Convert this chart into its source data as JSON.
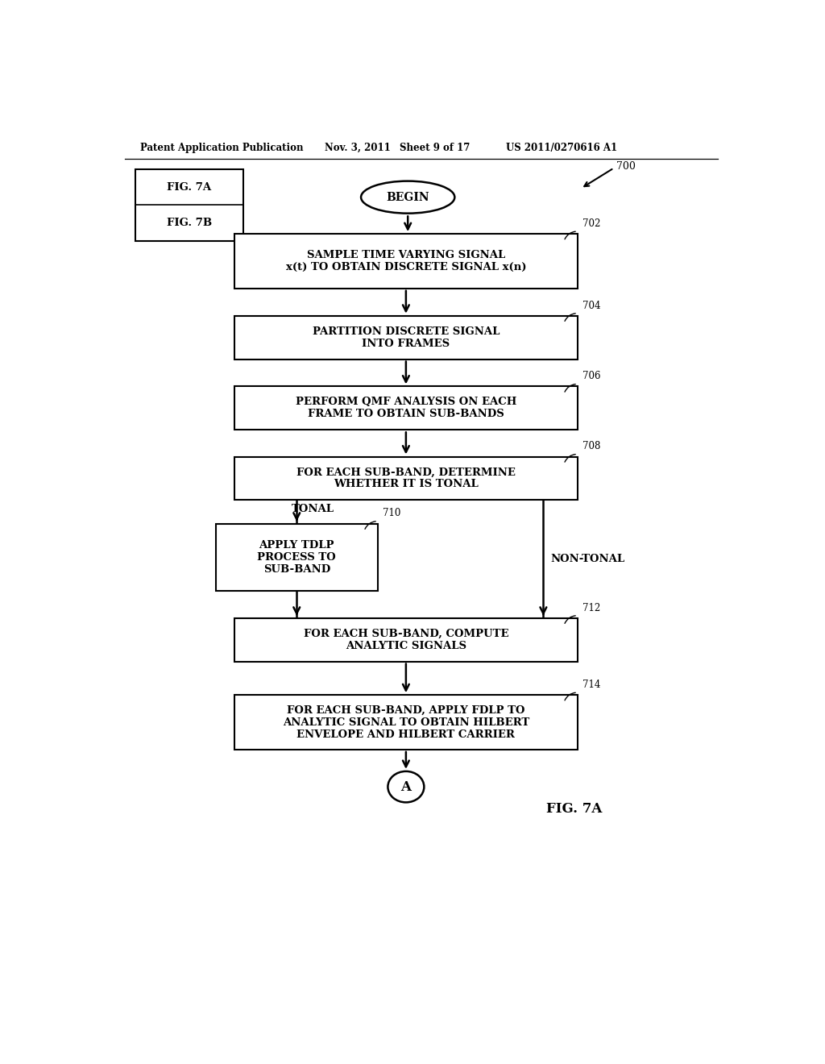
{
  "bg_color": "#ffffff",
  "header_text": "Patent Application Publication",
  "header_date": "Nov. 3, 2011",
  "header_sheet": "Sheet 9 of 17",
  "header_patent": "US 2011/0270616 A1",
  "fig_label_bottom": "FIG. 7A",
  "fig_num": "700",
  "fig_legend_items": [
    "FIG. 7A",
    "FIG. 7B"
  ],
  "begin_text": "BEGIN",
  "connector_label": "A",
  "tonal_label": "TONAL",
  "non_tonal_label": "NON-TONAL",
  "step_texts": {
    "702": "SAMPLE TIME VARYING SIGNAL\nx(t) TO OBTAIN DISCRETE SIGNAL x(n)",
    "704": "PARTITION DISCRETE SIGNAL\nINTO FRAMES",
    "706": "PERFORM QMF ANALYSIS ON EACH\nFRAME TO OBTAIN SUB-BANDS",
    "708": "FOR EACH SUB-BAND, DETERMINE\nWHETHER IT IS TONAL",
    "710": "APPLY TDLP\nPROCESS TO\nSUB-BAND",
    "712": "FOR EACH SUB-BAND, COMPUTE\nANALYTIC SIGNALS",
    "714": "FOR EACH SUB-BAND, APPLY FDLP TO\nANALYTIC SIGNAL TO OBTAIN HILBERT\nENVELOPE AND HILBERT CARRIER"
  }
}
